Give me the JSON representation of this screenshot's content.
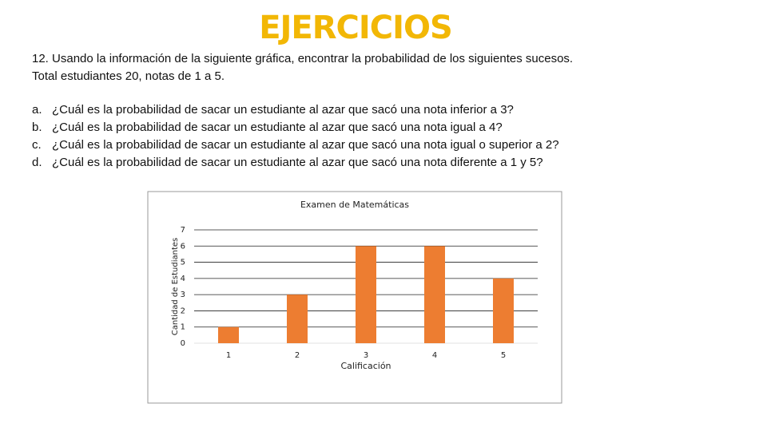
{
  "header": {
    "title": "EJERCICIOS"
  },
  "intro": [
    "12. Usando la información de la siguiente gráfica, encontrar la probabilidad de los siguientes sucesos.",
    "Total estudiantes 20, notas de 1 a 5."
  ],
  "questions": [
    {
      "letter": "a.",
      "text": "¿Cuál es la probabilidad de sacar un estudiante al azar que sacó una nota inferior a 3?"
    },
    {
      "letter": "b.",
      "text": "¿Cuál es la probabilidad de sacar un estudiante al azar que sacó una nota igual a 4?"
    },
    {
      "letter": "c.",
      "text": "¿Cuál es la probabilidad de sacar un estudiante al azar que sacó una nota igual o superior a 2?"
    },
    {
      "letter": "d.",
      "text": "¿Cuál es la probabilidad de sacar un estudiante al azar que sacó una nota diferente a 1 y 5?"
    }
  ],
  "chart_data": {
    "type": "bar",
    "title": "Examen de Matemáticas",
    "x_label": "Calificación",
    "y_label": "Cantidad de Estudiantes",
    "categories": [
      "1",
      "2",
      "3",
      "4",
      "5"
    ],
    "values": [
      1,
      3,
      6,
      6,
      4
    ],
    "color": "#ed7d31",
    "ylim": [
      0,
      7
    ],
    "yticks": [
      0,
      1,
      2,
      3,
      4,
      5,
      6,
      7
    ],
    "grid": true
  }
}
